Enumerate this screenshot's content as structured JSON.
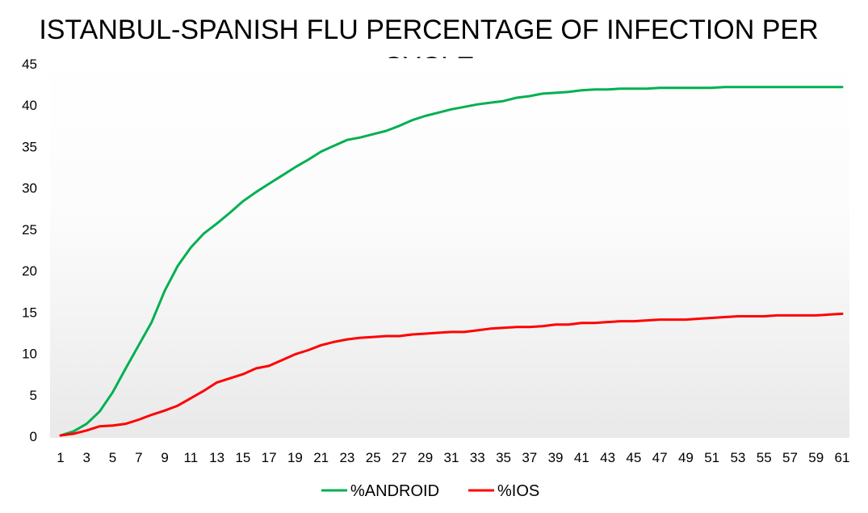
{
  "chart_data": {
    "type": "line",
    "title": "ISTANBUL-SPANISH FLU PERCENTAGE OF INFECTION PER CYCLE",
    "xlabel": "",
    "ylabel": "",
    "ylim": [
      0,
      45
    ],
    "yticks": [
      0,
      5,
      10,
      15,
      20,
      25,
      30,
      35,
      40,
      45
    ],
    "x": [
      1,
      2,
      3,
      4,
      5,
      6,
      7,
      8,
      9,
      10,
      11,
      12,
      13,
      14,
      15,
      16,
      17,
      18,
      19,
      20,
      21,
      22,
      23,
      24,
      25,
      26,
      27,
      28,
      29,
      30,
      31,
      32,
      33,
      34,
      35,
      36,
      37,
      38,
      39,
      40,
      41,
      42,
      43,
      44,
      45,
      46,
      47,
      48,
      49,
      50,
      51,
      52,
      53,
      54,
      55,
      56,
      57,
      58,
      59,
      60,
      61
    ],
    "xtick_labels": [
      "1",
      "3",
      "5",
      "7",
      "9",
      "11",
      "13",
      "15",
      "17",
      "19",
      "21",
      "23",
      "25",
      "27",
      "29",
      "31",
      "33",
      "35",
      "37",
      "39",
      "41",
      "43",
      "45",
      "47",
      "49",
      "51",
      "53",
      "55",
      "57",
      "59",
      "61"
    ],
    "grid": false,
    "legend_position": "bottom",
    "series": [
      {
        "name": "%ANDROID",
        "color": "#00b050",
        "values": [
          0.1,
          0.6,
          1.5,
          3.0,
          5.3,
          8.2,
          11.0,
          13.8,
          17.6,
          20.6,
          22.8,
          24.5,
          25.7,
          27.0,
          28.4,
          29.5,
          30.5,
          31.5,
          32.5,
          33.4,
          34.4,
          35.1,
          35.8,
          36.1,
          36.5,
          36.9,
          37.5,
          38.2,
          38.7,
          39.1,
          39.5,
          39.8,
          40.1,
          40.3,
          40.5,
          40.9,
          41.1,
          41.4,
          41.5,
          41.6,
          41.8,
          41.9,
          41.9,
          42.0,
          42.0,
          42.0,
          42.1,
          42.1,
          42.1,
          42.1,
          42.1,
          42.2,
          42.2,
          42.2,
          42.2,
          42.2,
          42.2,
          42.2,
          42.2,
          42.2,
          42.2
        ]
      },
      {
        "name": "%IOS",
        "color": "#ff0000",
        "values": [
          0.1,
          0.3,
          0.7,
          1.2,
          1.3,
          1.5,
          2.0,
          2.6,
          3.1,
          3.7,
          4.6,
          5.5,
          6.5,
          7.0,
          7.5,
          8.2,
          8.5,
          9.2,
          9.9,
          10.4,
          11.0,
          11.4,
          11.7,
          11.9,
          12.0,
          12.1,
          12.1,
          12.3,
          12.4,
          12.5,
          12.6,
          12.6,
          12.8,
          13.0,
          13.1,
          13.2,
          13.2,
          13.3,
          13.5,
          13.5,
          13.7,
          13.7,
          13.8,
          13.9,
          13.9,
          14.0,
          14.1,
          14.1,
          14.1,
          14.2,
          14.3,
          14.4,
          14.5,
          14.5,
          14.5,
          14.6,
          14.6,
          14.6,
          14.6,
          14.7,
          14.8
        ]
      }
    ]
  }
}
